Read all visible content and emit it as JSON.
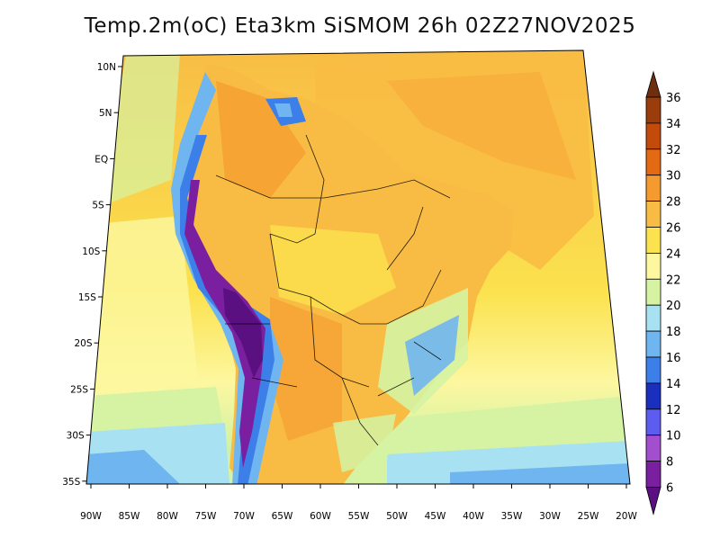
{
  "title": "Temp.2m(oC) Eta3km SiSMOM 26h 02Z27NOV2025",
  "variable": "Temp.2m",
  "units": "oC",
  "model": "Eta3km SiSMOM",
  "forecast_hour": "26h",
  "valid_time": "02Z27NOV2025",
  "lat_axis_labels": [
    "10N",
    "5N",
    "EQ",
    "5S",
    "10S",
    "15S",
    "20S",
    "25S",
    "30S",
    "35S"
  ],
  "lon_axis_labels": [
    "90W",
    "85W",
    "80W",
    "75W",
    "70W",
    "65W",
    "60W",
    "55W",
    "50W",
    "45W",
    "40W",
    "35W",
    "30W",
    "25W",
    "20W"
  ],
  "colorbar": {
    "labels": [
      "36",
      "34",
      "32",
      "30",
      "28",
      "26",
      "24",
      "22",
      "20",
      "18",
      "16",
      "14",
      "12",
      "10",
      "8",
      "6"
    ],
    "colors_top_to_bottom": [
      "#6e2e10",
      "#9a3c0c",
      "#c24a0a",
      "#e36a12",
      "#f59a2e",
      "#f8bc44",
      "#fbe24e",
      "#fdf7a0",
      "#d5f3a3",
      "#a8e1f2",
      "#6fb5f0",
      "#3d7fe8",
      "#1a2fbe",
      "#5c5cf0",
      "#a34dcf",
      "#7a1fa0",
      "#5a1080"
    ]
  }
}
